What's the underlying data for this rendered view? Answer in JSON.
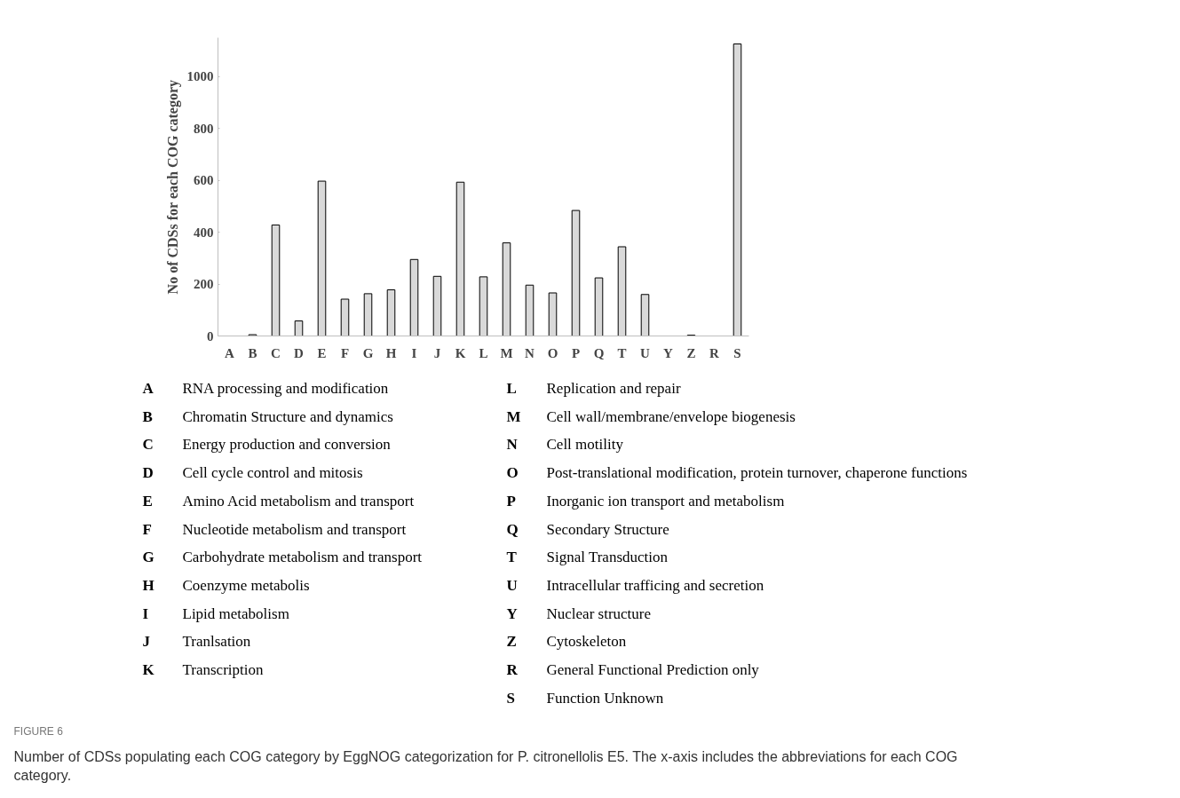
{
  "chart_data": {
    "type": "bar",
    "title": "FIGURE 6",
    "ylabel": "No of CDSs for each COG category",
    "categories": [
      "A",
      "B",
      "C",
      "D",
      "E",
      "F",
      "G",
      "H",
      "I",
      "J",
      "K",
      "L",
      "M",
      "N",
      "O",
      "P",
      "Q",
      "T",
      "U",
      "Y",
      "Z",
      "R",
      "S"
    ],
    "values": [
      0,
      5,
      428,
      58,
      597,
      142,
      163,
      178,
      295,
      230,
      593,
      228,
      359,
      196,
      166,
      484,
      224,
      344,
      160,
      0,
      3,
      0,
      1126
    ],
    "color": "#d9d9d9",
    "ylim": [
      0,
      1150
    ],
    "yticks": [
      0,
      200,
      400,
      600,
      800,
      1000
    ],
    "grid": false,
    "annotations": [
      "Number of CDSs populating each COG category by EggNOG categorization for P. citronellolis E5. The x-axis includes the abbreviations for each COG category.",
      "A",
      "RNA processing and modification",
      "B",
      "Chromatin Structure and dynamics",
      "C",
      "Energy production and conversion",
      "D",
      "Cell cycle control and mitosis",
      "E",
      "Amino Acid metabolism and transport",
      "F",
      "Nucleotide metabolism and transport",
      "G",
      "Carbohydrate metabolism and transport",
      "H",
      "Coenzyme metabolis",
      "I",
      "Lipid metabolism",
      "J",
      "Tranlsation",
      "K",
      "Transcription",
      "L",
      "Replication and repair",
      "M",
      "Cell wall/membrane/envelope biogenesis",
      "N",
      "Cell motility",
      "O",
      "Post-translational modification, protein turnover, chaperone functions",
      "P",
      "Inorganic ion transport and metabolism",
      "Q",
      "Secondary Structure",
      "T",
      "Signal Transduction",
      "U",
      "Intracellular trafficing and secretion",
      "Y",
      "Nuclear structure",
      "Z",
      "Cytoskeleton",
      "R",
      "General Functional Prediction only",
      "S",
      "Function Unknown"
    ]
  }
}
